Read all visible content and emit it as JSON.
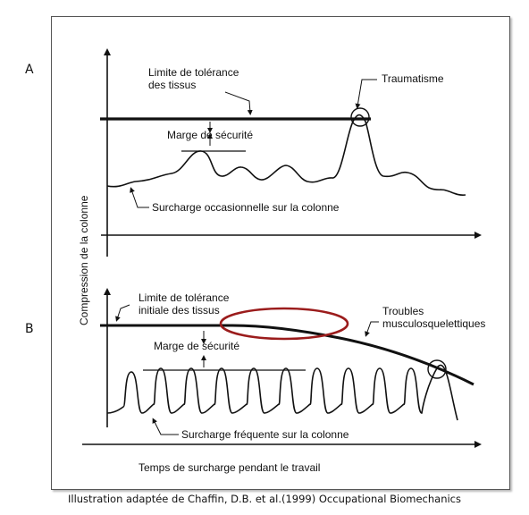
{
  "panel_a_letter": "A",
  "panel_b_letter": "B",
  "y_axis_label": "Compression de la colonne",
  "x_axis_label": "Temps de surcharge pendant le travail",
  "panel_a": {
    "tolerance_label_1": "Limite de tolérance",
    "tolerance_label_2": "des tissus",
    "trauma_label": "Traumatisme",
    "margin_label": "Marge de sécurité",
    "load_label": "Surcharge occasionnelle sur la colonne"
  },
  "panel_b": {
    "tolerance_label_1": "Limite de tolérance",
    "tolerance_label_2": "initiale des tissus",
    "disorder_label_1": "Troubles",
    "disorder_label_2": "musculosquelettiques",
    "margin_label": "Marge de sécurité",
    "load_label": "Surcharge fréquente sur la colonne"
  },
  "caption": "Illustration adaptée de Chaffin, D.B. et al.(1999) Occupational Biomechanics",
  "colors": {
    "line": "#111111",
    "highlight_ellipse": "#9b1c1c",
    "frame": "#555555"
  }
}
